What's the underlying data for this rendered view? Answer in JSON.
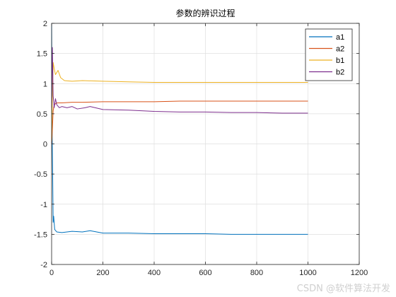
{
  "chart_data": {
    "type": "line",
    "title": "参数的辨识过程",
    "xlabel": "",
    "ylabel": "",
    "xlim": [
      0,
      1200
    ],
    "ylim": [
      -2,
      2
    ],
    "xticks": [
      0,
      200,
      400,
      600,
      800,
      1000,
      1200
    ],
    "yticks": [
      -2,
      -1.5,
      -1,
      -0.5,
      0,
      0.5,
      1,
      1.5,
      2
    ],
    "xtick_labels": [
      "0",
      "200",
      "400",
      "600",
      "800",
      "1000",
      "1200"
    ],
    "ytick_labels": [
      "-2",
      "-1.5",
      "-1",
      "-0.5",
      "0",
      "0.5",
      "1",
      "1.5",
      "2"
    ],
    "grid": true,
    "legend_position": "top-right",
    "series": [
      {
        "name": "a1",
        "color": "#0072BD",
        "x": [
          0,
          2,
          4,
          6,
          8,
          12,
          20,
          40,
          80,
          120,
          150,
          200,
          300,
          400,
          500,
          600,
          700,
          800,
          900,
          1000
        ],
        "y": [
          2.0,
          0.2,
          -0.5,
          -1.3,
          -1.2,
          -1.42,
          -1.46,
          -1.47,
          -1.45,
          -1.46,
          -1.44,
          -1.48,
          -1.48,
          -1.49,
          -1.49,
          -1.49,
          -1.5,
          -1.5,
          -1.5,
          -1.5
        ]
      },
      {
        "name": "a2",
        "color": "#D95319",
        "x": [
          0,
          2,
          4,
          6,
          10,
          20,
          40,
          80,
          120,
          200,
          300,
          400,
          500,
          600,
          700,
          800,
          900,
          1000
        ],
        "y": [
          0.0,
          0.15,
          0.35,
          0.55,
          0.65,
          0.68,
          0.68,
          0.69,
          0.69,
          0.7,
          0.7,
          0.7,
          0.71,
          0.71,
          0.71,
          0.71,
          0.71,
          0.71
        ]
      },
      {
        "name": "b1",
        "color": "#EDB120",
        "x": [
          0,
          3,
          6,
          10,
          15,
          25,
          35,
          50,
          80,
          120,
          200,
          300,
          400,
          500,
          600,
          700,
          800,
          900,
          1000
        ],
        "y": [
          0.05,
          0.8,
          1.35,
          1.25,
          1.15,
          1.22,
          1.1,
          1.05,
          1.04,
          1.05,
          1.04,
          1.03,
          1.02,
          1.02,
          1.02,
          1.02,
          1.02,
          1.02,
          1.02
        ]
      },
      {
        "name": "b2",
        "color": "#7E2F8E",
        "x": [
          0,
          3,
          6,
          10,
          15,
          20,
          30,
          40,
          60,
          80,
          100,
          130,
          150,
          200,
          300,
          400,
          500,
          600,
          700,
          800,
          900,
          1000
        ],
        "y": [
          0.6,
          1.6,
          0.8,
          0.6,
          0.75,
          0.65,
          0.6,
          0.62,
          0.6,
          0.62,
          0.58,
          0.6,
          0.62,
          0.57,
          0.56,
          0.54,
          0.53,
          0.53,
          0.52,
          0.52,
          0.51,
          0.51
        ]
      }
    ]
  },
  "watermark": "CSDN @软件算法开发",
  "colors": {
    "axis": "#262626",
    "grid": "#dfdfdf",
    "background": "#ffffff"
  }
}
